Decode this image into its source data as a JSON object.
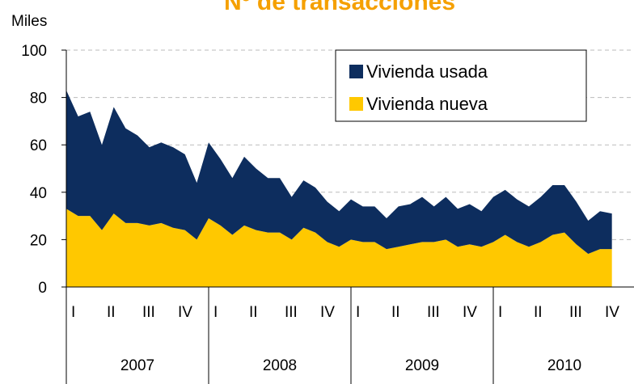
{
  "chart_data": {
    "type": "stacked-area",
    "title": "Nº de transacciones",
    "y_label": "Miles",
    "categories": [
      "I",
      null,
      null,
      "II",
      null,
      null,
      "III",
      null,
      null,
      "IV",
      null,
      null,
      "I",
      null,
      null,
      "II",
      null,
      null,
      "III",
      null,
      null,
      "IV",
      null,
      null,
      "I",
      null,
      null,
      "II",
      null,
      null,
      "III",
      null,
      null,
      "IV",
      null,
      null,
      "I",
      null,
      null,
      "II",
      null,
      null,
      "III",
      null,
      null,
      "IV",
      null
    ],
    "years": [
      "2007",
      "2008",
      "2009",
      "2010"
    ],
    "series": [
      {
        "name": "Vivienda nueva",
        "color": "#ffc800",
        "values": [
          33,
          30,
          30,
          24,
          31,
          27,
          27,
          26,
          27,
          25,
          24,
          20,
          29,
          26,
          22,
          26,
          24,
          23,
          23,
          20,
          25,
          23,
          19,
          17,
          20,
          19,
          19,
          16,
          17,
          18,
          19,
          19,
          20,
          17,
          18,
          17,
          19,
          22,
          19,
          17,
          19,
          22,
          23,
          18,
          14,
          16,
          16
        ]
      },
      {
        "name": "Vivienda usada",
        "color": "#0d2d5e",
        "values": [
          50,
          42,
          44,
          36,
          45,
          40,
          37,
          33,
          34,
          34,
          32,
          24,
          32,
          28,
          24,
          29,
          26,
          23,
          23,
          18,
          20,
          19,
          17,
          15,
          17,
          15,
          15,
          13,
          17,
          17,
          19,
          15,
          18,
          16,
          17,
          15,
          19,
          19,
          18,
          17,
          19,
          21,
          20,
          18,
          14,
          16,
          15
        ]
      }
    ],
    "ylim": [
      0,
      100
    ],
    "yticks": [
      0,
      20,
      40,
      60,
      80,
      100
    ],
    "grid": true,
    "legend": "top-right"
  }
}
